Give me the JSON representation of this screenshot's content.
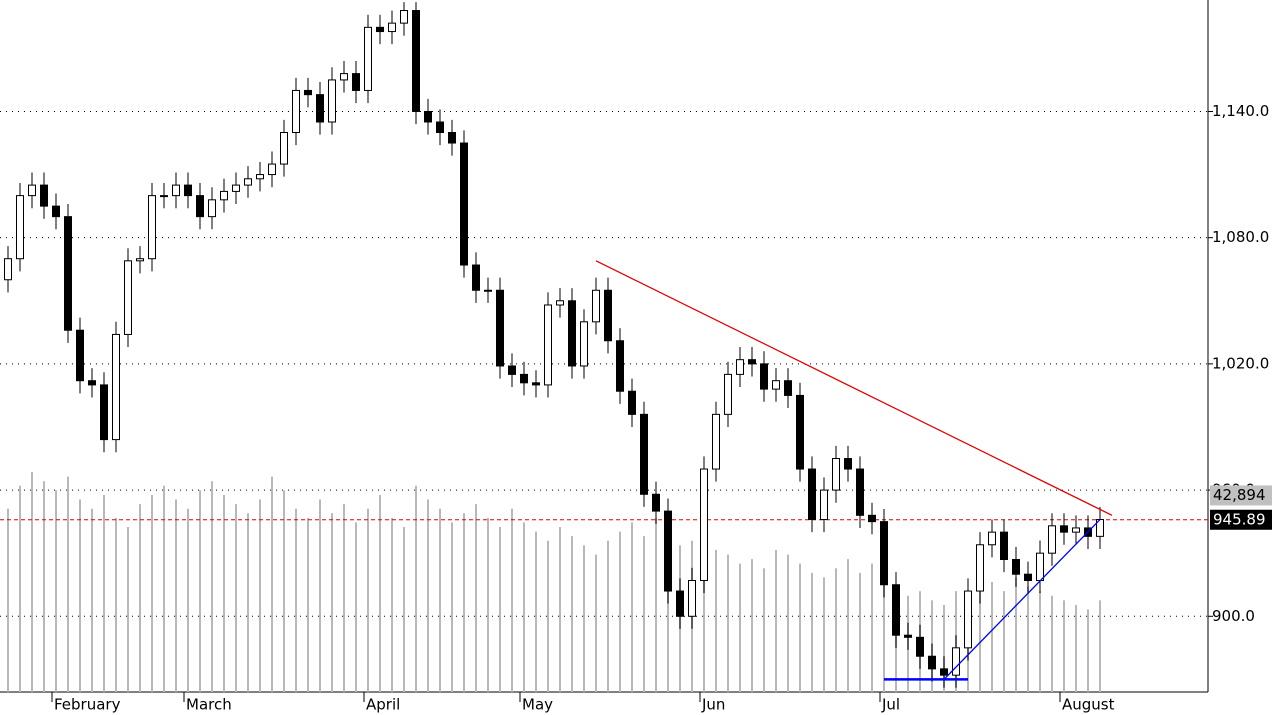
{
  "chart_data": {
    "type": "candlestick",
    "categories": [
      null,
      null,
      null,
      null,
      "February",
      null,
      null,
      null,
      null,
      null,
      null,
      null,
      null,
      null,
      null,
      "March",
      null,
      null,
      null,
      null,
      null,
      null,
      null,
      null,
      null,
      null,
      null,
      null,
      null,
      null,
      "April",
      null,
      null,
      null,
      null,
      null,
      null,
      null,
      null,
      null,
      null,
      null,
      null,
      "May",
      null,
      null,
      null,
      null,
      null,
      null,
      null,
      null,
      null,
      null,
      null,
      null,
      null,
      null,
      "Jun",
      null,
      null,
      null,
      null,
      null,
      null,
      null,
      null,
      null,
      null,
      null,
      null,
      null,
      null,
      "Jul",
      null,
      null,
      null,
      null,
      null,
      null,
      null,
      null,
      null,
      null,
      null,
      null,
      null,
      null,
      "August",
      null,
      null,
      null
    ],
    "open": [
      1060,
      1070,
      1100,
      1105,
      1095,
      1090,
      1036,
      1012,
      1010,
      984,
      1034,
      1069,
      1070,
      1100,
      1100,
      1105,
      1100,
      1090,
      1098,
      1102,
      1105,
      1108,
      1110,
      1115,
      1130,
      1150,
      1148,
      1135,
      1155,
      1158,
      1150,
      1180,
      1178,
      1182,
      1188,
      1140,
      1135,
      1130,
      1125,
      1067,
      1055,
      1055,
      1019,
      1015,
      1011,
      1010,
      1048,
      1050,
      1019,
      1040,
      1055,
      1031,
      1007,
      996,
      958,
      950,
      912,
      900,
      917,
      970,
      996,
      1015,
      1022,
      1020,
      1008,
      1012,
      1005,
      970,
      946,
      960,
      975,
      970,
      948,
      945,
      915,
      891,
      890,
      881,
      875,
      872,
      885,
      912,
      934,
      940,
      927,
      920,
      917,
      930,
      943,
      940,
      942,
      938
    ],
    "high": [
      1076,
      1106,
      1111,
      1111,
      1101,
      1096,
      1042,
      1018,
      1016,
      1040,
      1075,
      1076,
      1106,
      1106,
      1111,
      1111,
      1106,
      1104,
      1108,
      1111,
      1114,
      1116,
      1121,
      1136,
      1156,
      1156,
      1154,
      1161,
      1164,
      1164,
      1186,
      1186,
      1188,
      1192,
      1192,
      1146,
      1141,
      1136,
      1131,
      1073,
      1061,
      1061,
      1025,
      1021,
      1017,
      1054,
      1056,
      1056,
      1046,
      1061,
      1061,
      1037,
      1013,
      1002,
      964,
      956,
      918,
      923,
      976,
      1002,
      1021,
      1028,
      1028,
      1026,
      1018,
      1018,
      1011,
      976,
      966,
      981,
      981,
      976,
      954,
      951,
      921,
      897,
      896,
      887,
      881,
      891,
      918,
      940,
      946,
      946,
      933,
      926,
      936,
      949,
      949,
      948,
      948,
      952
    ],
    "low": [
      1054,
      1064,
      1094,
      1089,
      1084,
      1030,
      1006,
      1004,
      978,
      978,
      1028,
      1063,
      1064,
      1094,
      1094,
      1094,
      1084,
      1084,
      1092,
      1096,
      1099,
      1102,
      1104,
      1109,
      1124,
      1142,
      1129,
      1129,
      1149,
      1144,
      1144,
      1172,
      1172,
      1176,
      1134,
      1129,
      1124,
      1119,
      1061,
      1049,
      1049,
      1013,
      1009,
      1005,
      1004,
      1004,
      1042,
      1013,
      1013,
      1034,
      1025,
      1001,
      990,
      952,
      944,
      906,
      894,
      894,
      911,
      964,
      990,
      1009,
      1014,
      1002,
      1002,
      999,
      964,
      940,
      940,
      954,
      964,
      942,
      939,
      909,
      885,
      884,
      875,
      869,
      866,
      866,
      879,
      906,
      928,
      921,
      914,
      911,
      911,
      924,
      934,
      934,
      932,
      932
    ],
    "close": [
      1070,
      1100,
      1105,
      1095,
      1090,
      1036,
      1012,
      1010,
      984,
      1034,
      1069,
      1070,
      1100,
      1100,
      1105,
      1100,
      1090,
      1098,
      1102,
      1105,
      1108,
      1110,
      1115,
      1130,
      1150,
      1148,
      1135,
      1155,
      1158,
      1150,
      1180,
      1178,
      1182,
      1188,
      1140,
      1135,
      1130,
      1125,
      1067,
      1055,
      1055,
      1019,
      1015,
      1011,
      1010,
      1048,
      1050,
      1019,
      1040,
      1055,
      1031,
      1007,
      996,
      958,
      950,
      912,
      900,
      917,
      970,
      996,
      1015,
      1022,
      1020,
      1008,
      1012,
      1005,
      970,
      946,
      960,
      975,
      970,
      948,
      945,
      915,
      891,
      890,
      881,
      875,
      872,
      885,
      912,
      934,
      940,
      927,
      920,
      917,
      930,
      943,
      940,
      942,
      938,
      946
    ],
    "volume": [
      40000,
      45000,
      48000,
      46000,
      44000,
      47000,
      42000,
      40000,
      43000,
      38000,
      36000,
      41000,
      43000,
      45000,
      42000,
      40000,
      44000,
      46000,
      43000,
      41000,
      39000,
      42000,
      47000,
      44000,
      40000,
      38000,
      42000,
      39000,
      41000,
      37000,
      40000,
      43000,
      38000,
      36000,
      45000,
      42000,
      40000,
      37000,
      39000,
      41000,
      38000,
      36000,
      40000,
      37000,
      35000,
      33000,
      36000,
      34000,
      32000,
      30000,
      33000,
      35000,
      37000,
      34000,
      38000,
      36000,
      32000,
      33000,
      35000,
      31000,
      30000,
      28000,
      29000,
      27000,
      31000,
      30000,
      28000,
      26000,
      25000,
      27000,
      29000,
      26000,
      28000,
      24000,
      23000,
      21000,
      22000,
      20000,
      19000,
      22000,
      21000,
      23000,
      24000,
      22000,
      25000,
      23000,
      22000,
      21000,
      20000,
      19000,
      18000,
      20000
    ],
    "ylim": [
      864,
      1193
    ],
    "yticks": [
      {
        "value": 900,
        "label": "900.0"
      },
      {
        "value": 960,
        "label": "960.0"
      },
      {
        "value": 1020,
        "label": "1,020.0"
      },
      {
        "value": 1080,
        "label": "1,080.0"
      },
      {
        "value": 1140,
        "label": "1,140.0"
      }
    ],
    "volume_lim": [
      0,
      151000
    ],
    "volume_marker": {
      "value": 42894,
      "label": "42,894"
    },
    "price_marker": {
      "value": 945.89,
      "label": "945.89"
    },
    "trend_lines": [
      {
        "color": "#e00000",
        "x": [
          49,
          92
        ],
        "y": [
          1069,
          948
        ]
      },
      {
        "color": "#0000ff",
        "x": [
          78,
          91
        ],
        "y": [
          870,
          946
        ]
      },
      {
        "color": "#0000ff",
        "x": [
          73,
          80
        ],
        "y": [
          870,
          870
        ]
      }
    ],
    "grid": true
  }
}
